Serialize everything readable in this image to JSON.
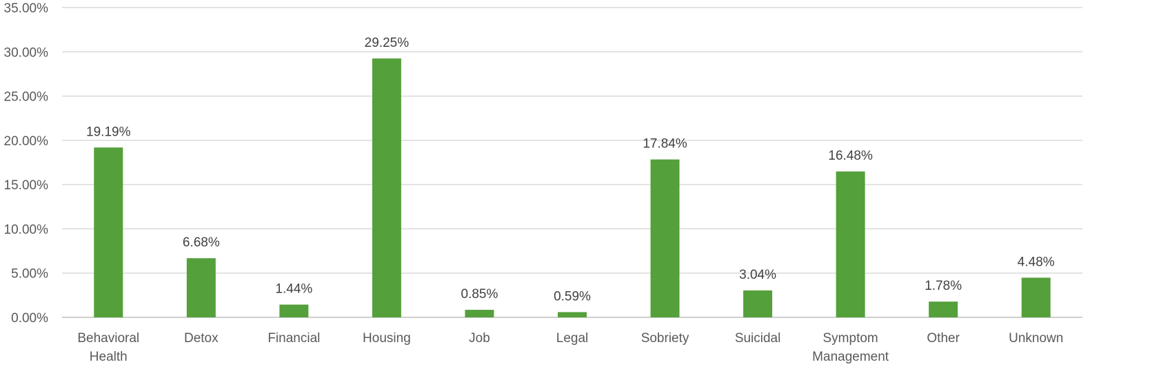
{
  "chart_data": {
    "type": "bar",
    "title": "",
    "xlabel": "",
    "ylabel": "",
    "ylim": [
      0,
      35
    ],
    "y_ticks": [
      "0.00%",
      "5.00%",
      "10.00%",
      "15.00%",
      "20.00%",
      "25.00%",
      "30.00%",
      "35.00%"
    ],
    "grid": true,
    "legend": "none",
    "bar_color": "#54a03b",
    "categories": [
      [
        "Behavioral",
        "Health"
      ],
      [
        "Detox"
      ],
      [
        "Financial"
      ],
      [
        "Housing"
      ],
      [
        "Job"
      ],
      [
        "Legal"
      ],
      [
        "Sobriety"
      ],
      [
        "Suicidal"
      ],
      [
        "Symptom",
        "Management"
      ],
      [
        "Other"
      ],
      [
        "Unknown"
      ]
    ],
    "values": [
      19.19,
      6.68,
      1.44,
      29.25,
      0.85,
      0.59,
      17.84,
      3.04,
      16.48,
      1.78,
      4.48
    ],
    "data_labels": [
      "19.19%",
      "6.68%",
      "1.44%",
      "29.25%",
      "0.85%",
      "0.59%",
      "17.84%",
      "3.04%",
      "16.48%",
      "1.78%",
      "4.48%"
    ]
  }
}
